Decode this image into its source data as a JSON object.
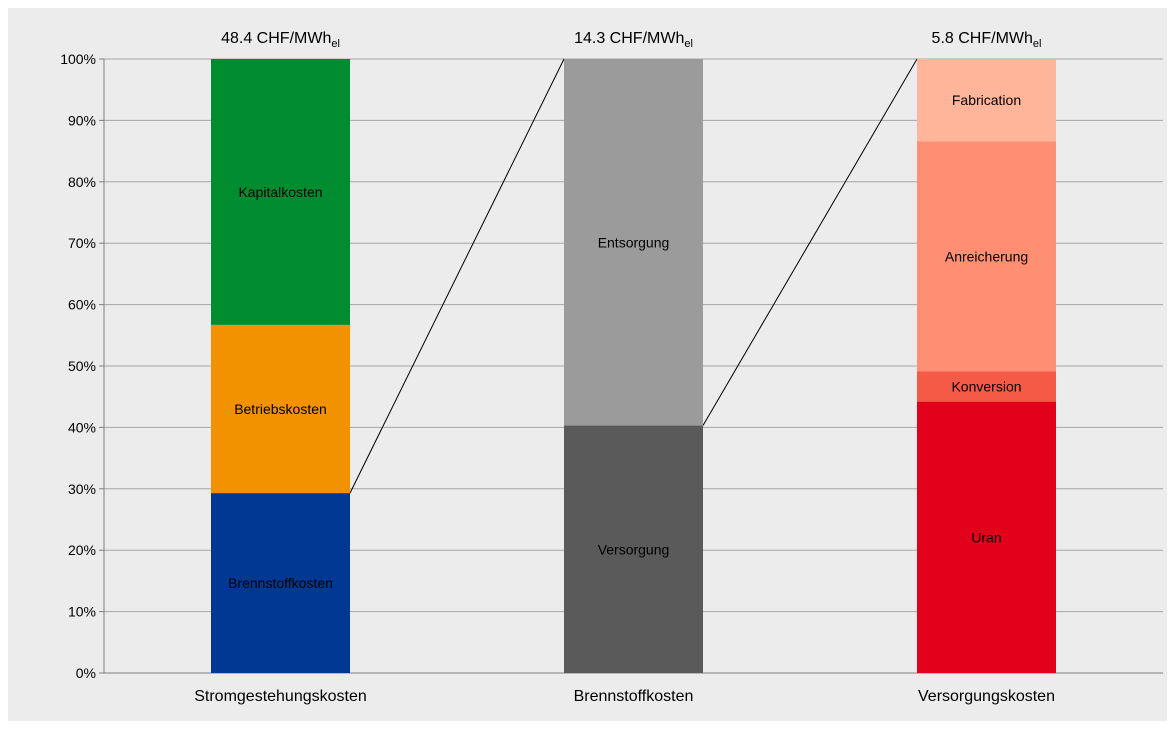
{
  "chart_data": {
    "type": "bar",
    "stacked": true,
    "ylim": [
      0,
      100
    ],
    "yticks": [
      "0%",
      "10%",
      "20%",
      "30%",
      "40%",
      "50%",
      "60%",
      "70%",
      "80%",
      "90%",
      "100%"
    ],
    "grid": true,
    "legend": "none",
    "background": "#ececec",
    "connector_lines": true,
    "bars": [
      {
        "category": "Stromgestehungskosten",
        "total_label": {
          "value": "48.4 CHF/MWh",
          "sub": "el"
        },
        "segments": [
          {
            "name": "Brennstoffkosten",
            "value": 29.3,
            "color": "#003893"
          },
          {
            "name": "Betriebskosten",
            "value": 27.4,
            "color": "#f39200"
          },
          {
            "name": "Kapitalkosten",
            "value": 43.3,
            "color": "#008c2f"
          }
        ]
      },
      {
        "category": "Brennstoffkosten",
        "total_label": {
          "value": "14.3 CHF/MWh",
          "sub": "el"
        },
        "segments": [
          {
            "name": "Versorgung",
            "value": 40.3,
            "color": "#5a5a5a"
          },
          {
            "name": "Entsorgung",
            "value": 59.7,
            "color": "#9b9b9b"
          }
        ]
      },
      {
        "category": "Versorgungskosten",
        "total_label": {
          "value": "5.8 CHF/MWh",
          "sub": "el"
        },
        "segments": [
          {
            "name": "Uran",
            "value": 44.2,
            "color": "#e3001b"
          },
          {
            "name": "Konversion",
            "value": 4.9,
            "color": "#f55a46"
          },
          {
            "name": "Anreicherung",
            "value": 37.5,
            "color": "#ff8f73"
          },
          {
            "name": "Fabrication",
            "value": 13.4,
            "color": "#ffb59a"
          }
        ]
      }
    ]
  }
}
